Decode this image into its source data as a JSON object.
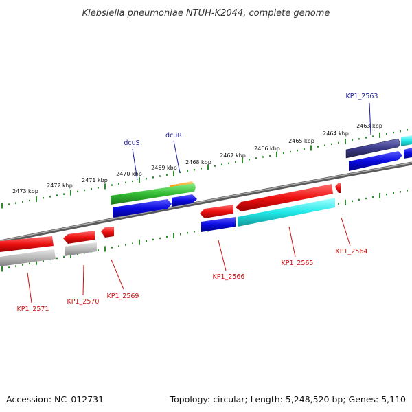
{
  "title": "Klebsiella pneumoniae NTUH-K2044, complete genome",
  "footer": {
    "accession": "Accession: NC_012731",
    "summary": "Topology: circular; Length: 5,248,520 bp; Genes: 5,110"
  },
  "colors": {
    "background": "#ffffff",
    "genome_line": "#8a8a8a",
    "tick": "#2e8b2e",
    "gene_blue": "#0a0ae0",
    "gene_red": "#ee1111",
    "gene_cyan": "#22e8e8",
    "gene_gray": "#b8b8b8",
    "gene_green": "#33bb33",
    "gene_orange": "#ff9900",
    "gene_navy": "#3a3a8a",
    "label_blue": "#1a1a9a",
    "label_red": "#cc1111"
  },
  "scale_labels": [
    "2463 kbp",
    "2464 kbp",
    "2465 kbp",
    "2466 kbp",
    "2467 kbp",
    "2468 kbp",
    "2469 kbp",
    "2470 kbp",
    "2471 kbp",
    "2472 kbp",
    "2473 kbp"
  ],
  "gene_labels": {
    "top": [
      "KP1_2563",
      "dcuR",
      "dcuS"
    ],
    "bottom": [
      "KP1_2564",
      "KP1_2565",
      "KP1_2566",
      "KP1_2569",
      "KP1_2570",
      "KP1_2571"
    ]
  }
}
